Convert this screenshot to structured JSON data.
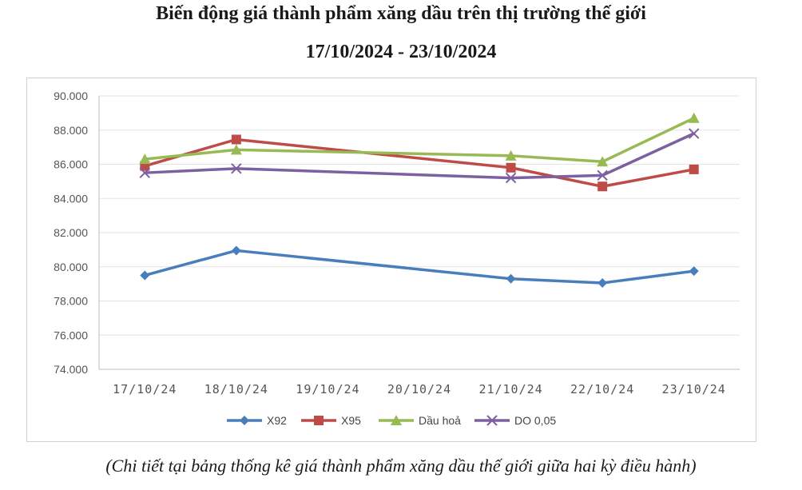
{
  "header": {
    "title_line1": "Biến động giá thành phẩm xăng dầu trên thị trường thế giới",
    "title_line2": "17/10/2024 - 23/10/2024"
  },
  "caption": "(Chi tiết tại bảng thống kê giá thành phẩm xăng dầu thế giới giữa hai kỳ điều hành)",
  "chart_data": {
    "type": "line",
    "title": "Biến động giá thành phẩm xăng dầu trên thị trường thế giới",
    "subtitle": "17/10/2024 - 23/10/2024",
    "categories": [
      "17/10/24",
      "18/10/24",
      "19/10/24",
      "20/10/24",
      "21/10/24",
      "22/10/24",
      "23/10/24"
    ],
    "ylim": [
      74000,
      90000
    ],
    "yticks": [
      74000,
      76000,
      78000,
      80000,
      82000,
      84000,
      86000,
      88000,
      90000
    ],
    "ytick_labels": [
      "74.000",
      "76.000",
      "78.000",
      "80.000",
      "82.000",
      "84.000",
      "86.000",
      "88.000",
      "90.000"
    ],
    "grid": true,
    "legend_position": "bottom",
    "series": [
      {
        "name": "X92",
        "color": "#4a7ebb",
        "marker": "diamond",
        "values": [
          79500,
          80950,
          null,
          null,
          79300,
          79050,
          79750
        ]
      },
      {
        "name": "X95",
        "color": "#be4b48",
        "marker": "square",
        "values": [
          85900,
          87450,
          null,
          null,
          85800,
          84700,
          85700
        ]
      },
      {
        "name": "Dầu hoả",
        "color": "#98b954",
        "marker": "triangle",
        "values": [
          86300,
          86850,
          null,
          null,
          86500,
          86150,
          88700
        ]
      },
      {
        "name": "DO 0,05",
        "color": "#7d60a0",
        "marker": "x",
        "values": [
          85500,
          85750,
          null,
          null,
          85200,
          85350,
          87800
        ]
      }
    ]
  }
}
